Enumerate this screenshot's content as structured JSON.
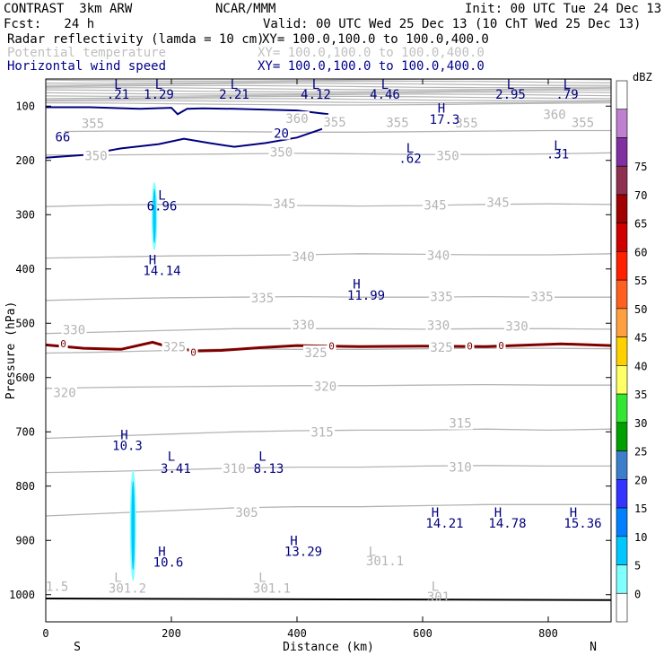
{
  "header": {
    "model": "CONTRAST  3km ARW",
    "org": "NCAR/MMM",
    "init": "Init: 00 UTC Tue 24 Dec 13",
    "fcst": "Fcst:   24 h",
    "valid": "Valid: 00 UTC Wed 25 Dec 13 (10 ChT Wed 25 Dec 13)",
    "field1": "Radar reflectivity (lamda = 10 cm)",
    "xy1": "XY= 100.0,100.0 to 100.0,400.0",
    "field2": "Potential temperature",
    "xy2": "XY= 100.0,100.0 to 100.0,400.0",
    "field3": "Horizontal wind speed",
    "xy3": "XY= 100.0,100.0 to 100.0,400.0"
  },
  "colors": {
    "theta": "#b4b4b4",
    "wind": "#00007f",
    "zero_line": "#800000",
    "refl": "#00c8ff"
  },
  "chart_data": {
    "type": "cross-section",
    "xlabel": "Distance (km)",
    "ylabel": "Pressure (hPa)",
    "xlim": [
      0,
      900
    ],
    "ylim": [
      1050,
      50
    ],
    "xticks": [
      0,
      200,
      400,
      600,
      800
    ],
    "yticks": [
      100,
      200,
      300,
      400,
      500,
      600,
      700,
      800,
      900,
      1000
    ],
    "x_end_labels": {
      "left": "S",
      "right": "N"
    },
    "theta_levels": [
      {
        "value": 355,
        "p": [
          147,
          146,
          146,
          147,
          148,
          148,
          147,
          146,
          145,
          145
        ]
      },
      {
        "value": 350,
        "p": [
          190,
          190,
          189,
          188,
          187,
          188,
          189,
          189,
          188,
          186
        ]
      },
      {
        "value": 345,
        "p": [
          285,
          282,
          281,
          281,
          283,
          284,
          283,
          281,
          280,
          281
        ]
      },
      {
        "value": 340,
        "p": [
          380,
          378,
          376,
          375,
          374,
          372,
          373,
          374,
          374,
          372
        ]
      },
      {
        "value": 335,
        "p": [
          458,
          455,
          453,
          452,
          451,
          452,
          452,
          451,
          452,
          452
        ]
      },
      {
        "value": 330,
        "p": [
          519,
          516,
          513,
          510,
          510,
          510,
          511,
          510,
          510,
          511
        ]
      },
      {
        "value": 325,
        "p": [
          555,
          553,
          550,
          547,
          548,
          548,
          547,
          546,
          546,
          547
        ]
      },
      {
        "value": 320,
        "p": [
          620,
          618,
          617,
          616,
          615,
          615,
          614,
          613,
          614,
          614
        ]
      },
      {
        "value": 315,
        "p": [
          712,
          708,
          704,
          700,
          698,
          697,
          697,
          695,
          697,
          695
        ]
      },
      {
        "value": 310,
        "p": [
          775,
          773,
          770,
          767,
          765,
          765,
          763,
          762,
          763,
          763
        ]
      },
      {
        "value": 305,
        "p": [
          855,
          850,
          845,
          840,
          838,
          838,
          836,
          834,
          834,
          834
        ]
      }
    ],
    "theta_labels": [
      {
        "t": "355",
        "x": 75,
        "p": 132
      },
      {
        "t": "355",
        "x": 460,
        "p": 129
      },
      {
        "t": "355",
        "x": 560,
        "p": 130
      },
      {
        "t": "355",
        "x": 670,
        "p": 131
      },
      {
        "t": "355",
        "x": 855,
        "p": 130
      },
      {
        "t": "360",
        "x": 810,
        "p": 115
      },
      {
        "t": "360",
        "x": 400,
        "p": 123
      },
      {
        "t": "350",
        "x": 80,
        "p": 191
      },
      {
        "t": "350",
        "x": 375,
        "p": 185
      },
      {
        "t": "350",
        "x": 640,
        "p": 191
      },
      {
        "t": "345",
        "x": 380,
        "p": 280
      },
      {
        "t": "345",
        "x": 620,
        "p": 282
      },
      {
        "t": "345",
        "x": 720,
        "p": 277
      },
      {
        "t": "340",
        "x": 410,
        "p": 377
      },
      {
        "t": "340",
        "x": 625,
        "p": 375
      },
      {
        "t": "335",
        "x": 345,
        "p": 453
      },
      {
        "t": "335",
        "x": 630,
        "p": 451
      },
      {
        "t": "335",
        "x": 790,
        "p": 451
      },
      {
        "t": "330",
        "x": 45,
        "p": 512
      },
      {
        "t": "330",
        "x": 410,
        "p": 503
      },
      {
        "t": "330",
        "x": 625,
        "p": 504
      },
      {
        "t": "330",
        "x": 750,
        "p": 505
      },
      {
        "t": "325",
        "x": 205,
        "p": 543
      },
      {
        "t": "325",
        "x": 430,
        "p": 554
      },
      {
        "t": "325",
        "x": 630,
        "p": 544
      },
      {
        "t": "320",
        "x": 30,
        "p": 628
      },
      {
        "t": "320",
        "x": 445,
        "p": 616
      },
      {
        "t": "315",
        "x": 440,
        "p": 700
      },
      {
        "t": "315",
        "x": 660,
        "p": 684
      },
      {
        "t": "310",
        "x": 300,
        "p": 767
      },
      {
        "t": "310",
        "x": 660,
        "p": 765
      },
      {
        "t": "305",
        "x": 320,
        "p": 848
      }
    ],
    "wind_labels": [
      {
        "t": "L",
        "x": 115,
        "p": 60
      },
      {
        "t": ".21",
        "x": 115,
        "p": 78
      },
      {
        "t": "L",
        "x": 180,
        "p": 60
      },
      {
        "t": "1.29",
        "x": 180,
        "p": 78
      },
      {
        "t": "L",
        "x": 300,
        "p": 60
      },
      {
        "t": "2.21",
        "x": 300,
        "p": 78
      },
      {
        "t": "L",
        "x": 430,
        "p": 60
      },
      {
        "t": "4.12",
        "x": 430,
        "p": 78
      },
      {
        "t": "L",
        "x": 540,
        "p": 60
      },
      {
        "t": "4.46",
        "x": 540,
        "p": 78
      },
      {
        "t": "L",
        "x": 740,
        "p": 60
      },
      {
        "t": "2.95",
        "x": 740,
        "p": 78
      },
      {
        "t": "L",
        "x": 830,
        "p": 60
      },
      {
        "t": ".79",
        "x": 830,
        "p": 78
      },
      {
        "t": "H",
        "x": 630,
        "p": 104
      },
      {
        "t": "17.3",
        "x": 635,
        "p": 124
      },
      {
        "t": "66",
        "x": 15,
        "p": 157
      },
      {
        "t": "20",
        "x": 375,
        "p": 150
      },
      {
        "t": "L",
        "x": 580,
        "p": 177
      },
      {
        "t": ".62",
        "x": 580,
        "p": 196
      },
      {
        "t": "L",
        "x": 815,
        "p": 172
      },
      {
        "t": ".31",
        "x": 815,
        "p": 188
      },
      {
        "t": "L",
        "x": 185,
        "p": 264
      },
      {
        "t": "6.96",
        "x": 185,
        "p": 284
      },
      {
        "t": "H",
        "x": 170,
        "p": 383
      },
      {
        "t": "14.14",
        "x": 185,
        "p": 403
      },
      {
        "t": "H",
        "x": 495,
        "p": 428
      },
      {
        "t": "11.99",
        "x": 510,
        "p": 448
      },
      {
        "t": "H",
        "x": 125,
        "p": 705
      },
      {
        "t": "10.3",
        "x": 130,
        "p": 725
      },
      {
        "t": "L",
        "x": 200,
        "p": 745
      },
      {
        "t": "3.41",
        "x": 207,
        "p": 767
      },
      {
        "t": "L",
        "x": 345,
        "p": 745
      },
      {
        "t": "8.13",
        "x": 355,
        "p": 767
      },
      {
        "t": "H",
        "x": 620,
        "p": 848
      },
      {
        "t": "14.21",
        "x": 635,
        "p": 868
      },
      {
        "t": "H",
        "x": 720,
        "p": 848
      },
      {
        "t": "14.78",
        "x": 735,
        "p": 868
      },
      {
        "t": "H",
        "x": 840,
        "p": 848
      },
      {
        "t": "15.36",
        "x": 855,
        "p": 868
      },
      {
        "t": "H",
        "x": 395,
        "p": 900
      },
      {
        "t": "13.29",
        "x": 410,
        "p": 920
      },
      {
        "t": "H",
        "x": 185,
        "p": 920
      },
      {
        "t": "10.6",
        "x": 195,
        "p": 940
      }
    ],
    "theta_minmax_labels": [
      {
        "t": "L",
        "x": 520,
        "p": 920
      },
      {
        "t": "301.1",
        "x": 540,
        "p": 938
      },
      {
        "t": "L",
        "x": 115,
        "p": 968
      },
      {
        "t": "301.2",
        "x": 130,
        "p": 988
      },
      {
        "t": "L",
        "x": 345,
        "p": 968
      },
      {
        "t": "301.1",
        "x": 360,
        "p": 988
      },
      {
        "t": "L",
        "x": 620,
        "p": 985
      },
      {
        "t": "301",
        "x": 625,
        "p": 1004
      },
      {
        "t": "1.5",
        "x": 0,
        "p": 985
      }
    ],
    "wind_contours": [
      {
        "value": 20,
        "x": [
          0,
          70,
          150,
          200,
          210,
          225,
          250,
          300,
          400,
          450
        ],
        "p": [
          102,
          102,
          105,
          103,
          115,
          105,
          104,
          105,
          108,
          115
        ]
      },
      {
        "value": 20,
        "x": [
          0,
          60,
          120,
          180,
          220,
          260,
          300,
          350,
          400,
          440
        ],
        "p": [
          195,
          190,
          178,
          170,
          160,
          168,
          175,
          168,
          158,
          142
        ]
      }
    ],
    "zero_line": {
      "x": [
        0,
        60,
        120,
        170,
        200,
        240,
        280,
        340,
        400,
        500,
        600,
        700,
        820,
        900
      ],
      "p": [
        540,
        546,
        548,
        535,
        545,
        551,
        550,
        545,
        541,
        543,
        542,
        543,
        538,
        541
      ]
    },
    "zero_labels": [
      {
        "t": "0",
        "x": 28,
        "p": 538
      },
      {
        "t": "0",
        "x": 235,
        "p": 553
      },
      {
        "t": "0",
        "x": 455,
        "p": 542
      },
      {
        "t": "0",
        "x": 675,
        "p": 542
      },
      {
        "t": "0",
        "x": 725,
        "p": 541
      }
    ],
    "refl_cells": [
      {
        "x": 173,
        "p_top": 240,
        "p_bot": 365,
        "width_km": 9
      },
      {
        "x": 139,
        "p_top": 770,
        "p_bot": 975,
        "width_km": 10
      }
    ],
    "surface": {
      "x": [
        0,
        900
      ],
      "p": [
        1007,
        1010
      ]
    },
    "colorbar": {
      "title": "dBZ",
      "ticks": [
        0,
        5,
        10,
        15,
        20,
        25,
        30,
        35,
        40,
        45,
        50,
        55,
        60,
        65,
        70,
        75
      ],
      "colors": [
        "#ffffff",
        "#80ffff",
        "#00c8ff",
        "#0080ff",
        "#3333ff",
        "#3b7fcc",
        "#00a000",
        "#33e633",
        "#ffff66",
        "#ffd000",
        "#ffa040",
        "#ff6020",
        "#ff2000",
        "#d00000",
        "#a00000",
        "#903050",
        "#8030a0",
        "#c080d0",
        "#ffffff"
      ]
    }
  }
}
